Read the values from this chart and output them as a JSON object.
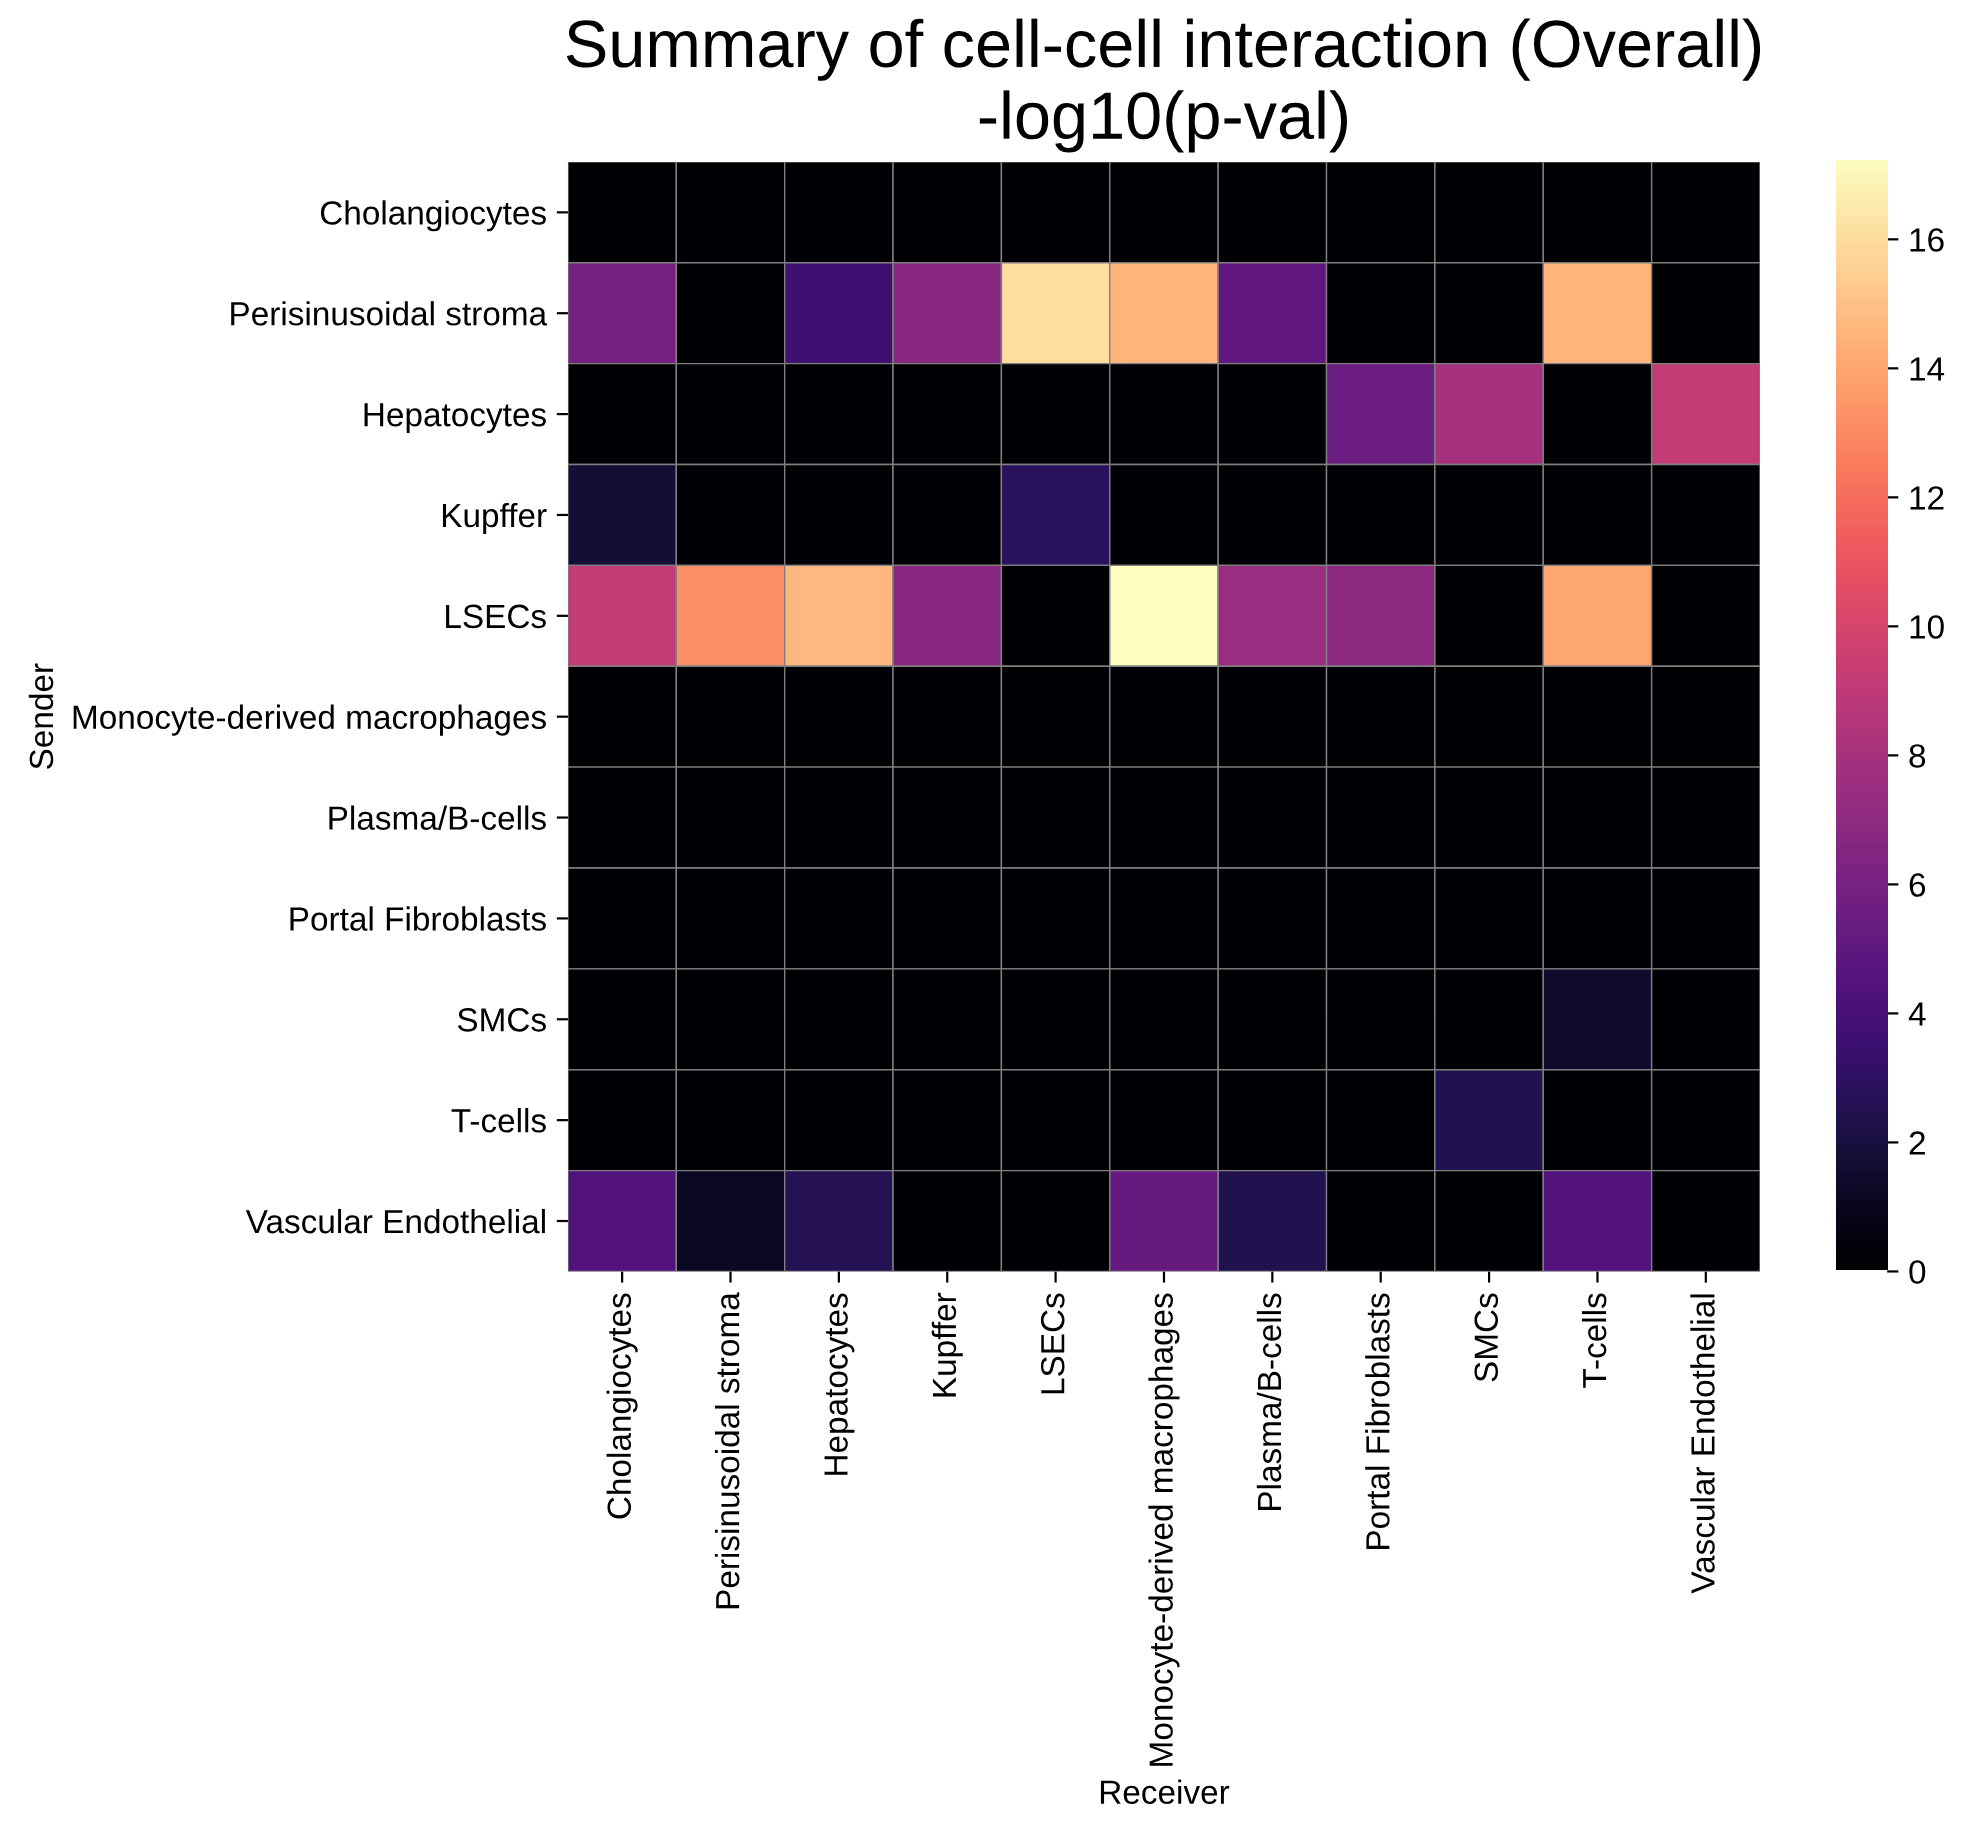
{
  "chart_data": {
    "type": "heatmap",
    "title": "Summary of cell-cell interaction (Overall)",
    "subtitle": "-log10(p-val)",
    "xlabel": "Receiver",
    "ylabel": "Sender",
    "categories": [
      "Cholangiocytes",
      "Perisinusoidal stroma",
      "Hepatocytes",
      "Kupffer",
      "LSECs",
      "Monocyte-derived macrophages",
      "Plasma/B-cells",
      "Portal Fibroblasts",
      "SMCs",
      "T-cells",
      "Vascular Endothelial"
    ],
    "y_categories": [
      "Cholangiocytes",
      "Perisinusoidal stroma",
      "Hepatocytes",
      "Kupffer",
      "LSECs",
      "Monocyte-derived macrophages",
      "Plasma/B-cells",
      "Portal Fibroblasts",
      "SMCs",
      "T-cells",
      "Vascular Endothelial"
    ],
    "cells": [
      [
        0,
        0,
        0,
        0,
        0,
        0,
        0,
        0,
        0,
        0,
        0
      ],
      [
        5.8,
        0,
        3.6,
        6.7,
        16.0,
        14.5,
        5.0,
        0,
        0,
        14.5,
        0
      ],
      [
        0,
        0,
        0,
        0,
        0,
        0,
        0,
        5.5,
        7.9,
        0,
        9.2
      ],
      [
        1.7,
        0,
        0,
        0,
        2.8,
        0,
        0,
        0,
        0,
        0,
        0
      ],
      [
        9.2,
        13.2,
        14.6,
        6.7,
        0,
        17.2,
        7.4,
        6.8,
        0,
        14.0,
        0
      ],
      [
        0,
        0,
        0,
        0,
        0,
        0,
        0,
        0,
        0,
        0,
        0
      ],
      [
        0,
        0,
        0,
        0,
        0,
        0,
        0,
        0,
        0,
        0,
        0
      ],
      [
        0,
        0,
        0,
        0,
        0,
        0,
        0,
        0,
        0,
        0,
        0
      ],
      [
        0,
        0,
        0,
        0,
        0,
        0,
        0,
        0,
        0,
        1.4,
        0
      ],
      [
        0,
        0,
        0,
        0,
        0,
        0,
        0,
        0,
        2.4,
        0,
        0
      ],
      [
        4.3,
        1.1,
        2.6,
        0,
        0,
        5.2,
        2.4,
        0,
        0,
        4.3,
        0
      ]
    ],
    "clim": [
      0,
      17.2
    ],
    "cticks": [
      0,
      2,
      4,
      6,
      8,
      10,
      12,
      14,
      16
    ]
  }
}
